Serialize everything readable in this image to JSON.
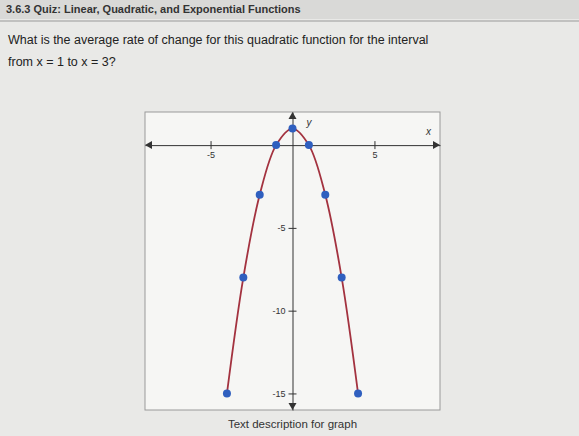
{
  "header": {
    "title": "3.6.3 Quiz: Linear, Quadratic, and Exponential Functions"
  },
  "question": {
    "lines": [
      "What is the average rate of change for this quadratic function for the interval",
      "from x = 1 to x = 3?"
    ]
  },
  "link": {
    "text": "Text description for graph"
  },
  "chart_data": {
    "type": "line",
    "x_label": "x",
    "y_label": "y",
    "x": [
      -4,
      -3,
      -2,
      -1,
      0,
      1,
      2,
      3,
      4
    ],
    "values": [
      -15,
      -8,
      -3,
      0,
      1,
      0,
      -3,
      -8,
      -15
    ],
    "color": "#a3323f",
    "marker": "circle",
    "xlim": [
      -9,
      9
    ],
    "ylim": [
      -16,
      2
    ],
    "xticks": [
      -5,
      5
    ],
    "yticks": [
      -15,
      -10,
      -5
    ]
  }
}
